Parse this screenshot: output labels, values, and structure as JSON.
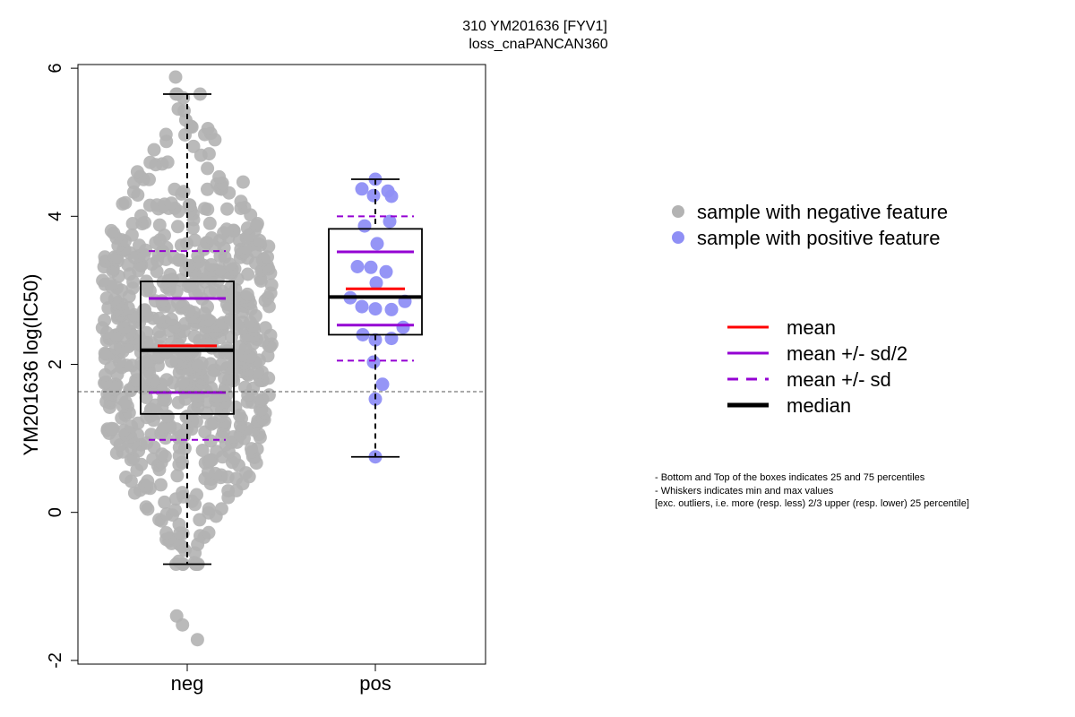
{
  "chart_data": {
    "type": "box",
    "title": "310 YM201636 [FYV1]",
    "subtitle": "loss_cnaPANCAN360",
    "xlabel": "",
    "ylabel": "YM201636 log(IC50)",
    "categories": [
      "neg",
      "pos"
    ],
    "ylim": [
      -2.05,
      6.05
    ],
    "yticks": [
      -2,
      0,
      2,
      4,
      6
    ],
    "yticklabels": [
      "-2",
      "0",
      "2",
      "4",
      "6"
    ],
    "threshold_line": 1.63,
    "grid": false,
    "groups": [
      {
        "name": "neg",
        "color": "#b3b3b3",
        "whisker_low": -0.7,
        "q1": 1.33,
        "median": 2.19,
        "q3": 3.12,
        "whisker_high": 5.65,
        "mean": 2.25,
        "mean_minus_half_sd": 1.62,
        "mean_plus_half_sd": 2.89,
        "mean_minus_sd": 0.98,
        "mean_plus_sd": 3.53,
        "outliers": [
          -1.4,
          -1.52,
          -1.72
        ],
        "n_points": 760
      },
      {
        "name": "pos",
        "color": "#8f8ff5",
        "whisker_low": 0.75,
        "q1": 2.4,
        "median": 2.91,
        "q3": 3.83,
        "whisker_high": 4.5,
        "mean": 3.02,
        "mean_minus_half_sd": 2.53,
        "mean_plus_half_sd": 3.52,
        "mean_minus_sd": 2.05,
        "mean_plus_sd": 4.0,
        "points": [
          4.5,
          4.37,
          4.34,
          4.28,
          4.27,
          3.93,
          3.87,
          3.63,
          3.32,
          3.31,
          3.25,
          3.1,
          2.9,
          2.85,
          2.78,
          2.75,
          2.74,
          2.5,
          2.4,
          2.35,
          2.33,
          2.03,
          1.73,
          1.53,
          0.75
        ]
      }
    ],
    "legend_points": [
      {
        "label": "sample with negative feature",
        "color": "#b3b3b3"
      },
      {
        "label": "sample with positive feature",
        "color": "#8f8ff5"
      }
    ],
    "legend_lines": [
      {
        "label": "mean",
        "color": "#ff0000",
        "style": "solid"
      },
      {
        "label": "mean +/- sd/2",
        "color": "#9400d3",
        "style": "solid"
      },
      {
        "label": "mean +/- sd",
        "color": "#9400d3",
        "style": "dashed"
      },
      {
        "label": "median",
        "color": "#000000",
        "style": "thick"
      }
    ],
    "notes": [
      "- Bottom and Top of the boxes indicates 25 and 75 percentiles",
      "- Whiskers indicates min and max values",
      "[exc. outliers, i.e. more (resp. less) 2/3 upper (resp. lower) 25 percentile]"
    ]
  }
}
